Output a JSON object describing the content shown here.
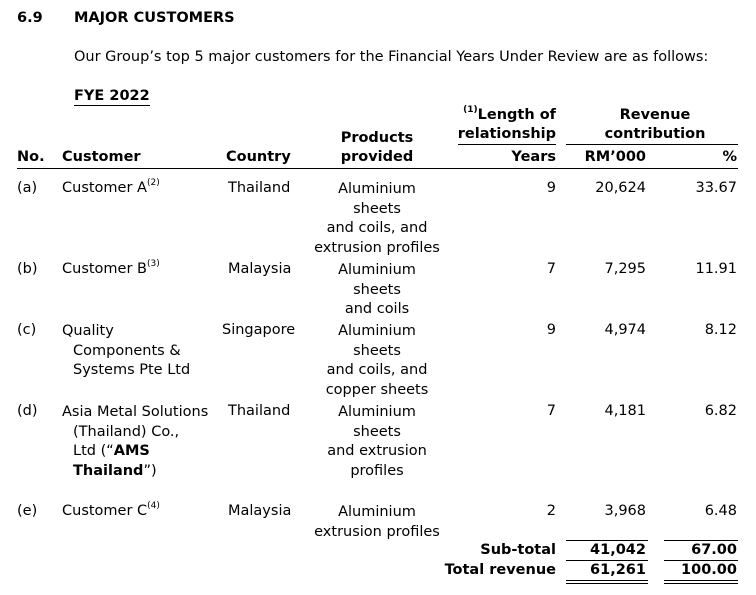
{
  "section": {
    "number": "6.9",
    "title": "MAJOR CUSTOMERS"
  },
  "intro": "Our Group’s top 5 major customers for the Financial Years Under Review are as follows:",
  "subheading": "FYE 2022",
  "headers": {
    "no": "No.",
    "customer": "Customer",
    "country": "Country",
    "products": [
      "Products",
      "provided"
    ],
    "length_note": "(1)",
    "length": [
      "Length of",
      "relationship"
    ],
    "years": "Years",
    "revenue": [
      "Revenue",
      "contribution"
    ],
    "rm": "RM’000",
    "pct": "%"
  },
  "rows": [
    {
      "no": "(a)",
      "customer": [
        "Customer A"
      ],
      "note": "(2)",
      "country": "Thailand",
      "products": [
        "Aluminium sheets",
        "and coils, and",
        "extrusion profiles"
      ],
      "years": "9",
      "rm": "20,624",
      "pct": "33.67"
    },
    {
      "no": "(b)",
      "customer": [
        "Customer B"
      ],
      "note": "(3)",
      "country": "Malaysia",
      "products": [
        "Aluminium sheets",
        "and coils"
      ],
      "years": "7",
      "rm": "7,295",
      "pct": "11.91"
    },
    {
      "no": "(c)",
      "customer": [
        "Quality",
        "Components &",
        "Systems Pte Ltd"
      ],
      "note": "",
      "country": "Singapore",
      "products": [
        "Aluminium sheets",
        "and coils, and",
        "copper sheets"
      ],
      "years": "9",
      "rm": "4,974",
      "pct": "8.12"
    },
    {
      "no": "(d)",
      "customer": [
        "Asia Metal Solutions",
        "(Thailand) Co.,",
        "Ltd (“",
        "AMS",
        "Thailand",
        "”)"
      ],
      "note": "",
      "country": "Thailand",
      "products": [
        "Aluminium sheets",
        "and extrusion",
        "profiles"
      ],
      "years": "7",
      "rm": "4,181",
      "pct": "6.82"
    },
    {
      "no": "(e)",
      "customer": [
        "Customer C"
      ],
      "note": "(4)",
      "country": "Malaysia",
      "products": [
        "Aluminium",
        "extrusion profiles"
      ],
      "years": "2",
      "rm": "3,968",
      "pct": "6.48"
    }
  ],
  "subtotal": {
    "label": "Sub-total",
    "rm": "41,042",
    "pct": "67.00"
  },
  "total": {
    "label": "Total revenue",
    "rm": "61,261",
    "pct": "100.00"
  }
}
